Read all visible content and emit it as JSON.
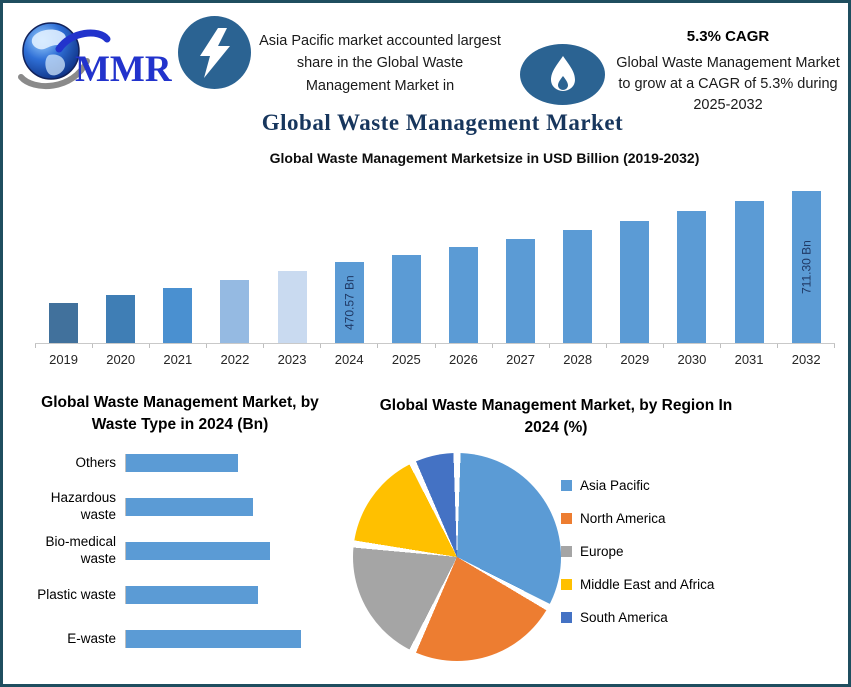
{
  "frame": {
    "border_color": "#1F4E5F",
    "badge_color": "#2B6392"
  },
  "header": {
    "logo": {
      "text": "MMR"
    },
    "fact_left": {
      "text": "Asia Pacific market accounted largest share in the Global Waste Management Market in"
    },
    "fact_right": {
      "headline": "5.3% CAGR",
      "text": "Global Waste Management Market to grow at a CAGR of 5.3% during 2025-2032"
    },
    "main_title": "Global Waste Management Market"
  },
  "chart_data": [
    {
      "id": "market-size-by-year",
      "type": "bar",
      "title": "Global Waste Management Marketsize in USD Billion (2019-2032)",
      "categories": [
        "2019",
        "2020",
        "2021",
        "2022",
        "2023",
        "2024",
        "2025",
        "2026",
        "2027",
        "2028",
        "2029",
        "2030",
        "2031",
        "2032"
      ],
      "values": [
        335,
        360,
        385,
        410,
        440,
        470.57,
        495.5,
        521.8,
        549.4,
        578.5,
        609.2,
        641.5,
        675.5,
        711.3
      ],
      "values_note": "only 2024 (470.57) and 2032 (711.30) are labeled; other values estimated from bar heights",
      "data_labels": [
        "",
        "",
        "",
        "",
        "",
        "470.57 Bn",
        "",
        "",
        "",
        "",
        "",
        "",
        "",
        "711.30 Bn"
      ],
      "bar_colors": [
        "#41719C",
        "#3F7EB5",
        "#4A90D0",
        "#95BAE2",
        "#C9DAF0",
        "#5B9BD5",
        "#5B9BD5",
        "#5B9BD5",
        "#5B9BD5",
        "#5B9BD5",
        "#5B9BD5",
        "#5B9BD5",
        "#5B9BD5",
        "#5B9BD5"
      ],
      "xlabel": "",
      "ylabel": "USD Billion",
      "ylim": [
        200,
        750
      ],
      "y_axis_hidden": true,
      "grid": false
    },
    {
      "id": "by-waste-type",
      "type": "bar",
      "orientation": "horizontal",
      "title": "Global Waste Management Market, by Waste Type in 2024 (Bn)",
      "categories": [
        "Others",
        "Hazardous waste",
        "Bio-medical waste",
        "Plastic waste",
        "E-waste"
      ],
      "values": [
        112,
        127,
        144,
        132,
        175
      ],
      "values_note": "value axis unlabeled; values are relative bar lengths",
      "bar_color": "#5B9BD5",
      "grid": false
    },
    {
      "id": "by-region",
      "type": "pie",
      "title": "Global Waste Management Market, by Region In 2024 (%)",
      "categories": [
        "Asia Pacific",
        "North America",
        "Europe",
        "Middle East and Africa",
        "South America"
      ],
      "values": [
        33,
        24,
        20,
        16,
        7
      ],
      "values_note": "percentages estimated from slice angles; no data labels shown",
      "colors": [
        "#5B9BD5",
        "#ED7D31",
        "#A5A5A5",
        "#FFC000",
        "#4472C4"
      ],
      "legend_position": "right",
      "start_angle_deg": 0
    }
  ]
}
